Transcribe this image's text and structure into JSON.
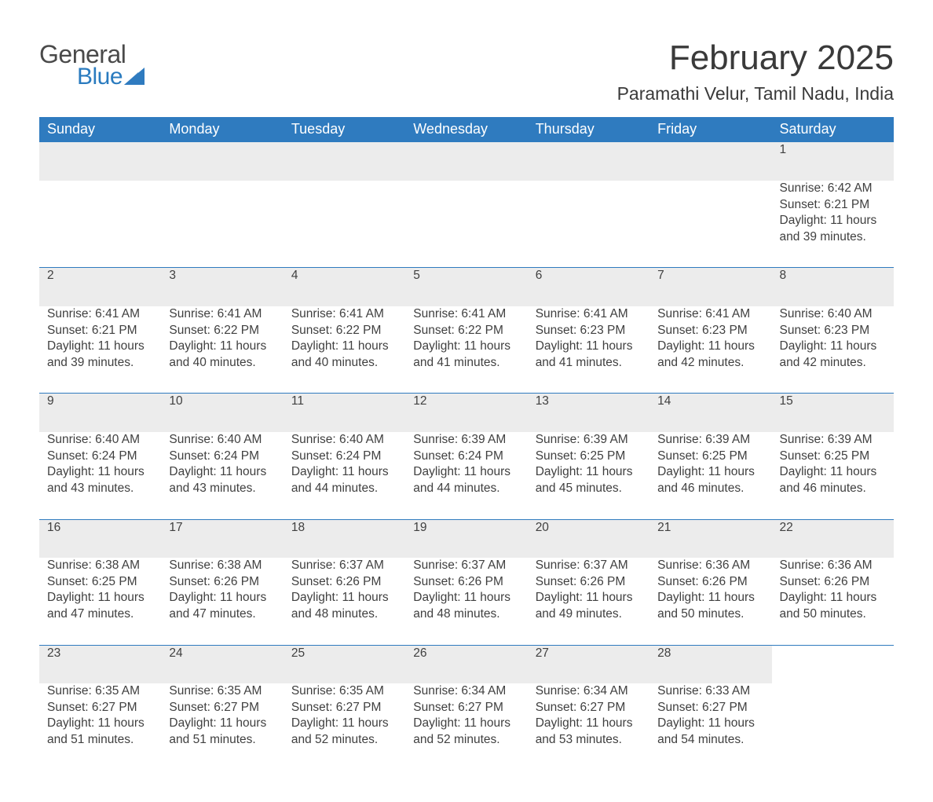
{
  "brand": {
    "word1": "General",
    "word2": "Blue",
    "sail_color": "#2f7bbf"
  },
  "title": "February 2025",
  "location": "Paramathi Velur, Tamil Nadu, India",
  "colors": {
    "header_bg": "#2f7bbf",
    "header_text": "#ffffff",
    "daynum_bg": "#ececec",
    "daynum_border": "#2f7bbf",
    "body_text": "#404040",
    "page_bg": "#ffffff"
  },
  "fonts": {
    "title_size_pt": 33,
    "location_size_pt": 17,
    "header_size_pt": 14,
    "cell_size_pt": 12
  },
  "weekdays": [
    "Sunday",
    "Monday",
    "Tuesday",
    "Wednesday",
    "Thursday",
    "Friday",
    "Saturday"
  ],
  "weeks": [
    [
      null,
      null,
      null,
      null,
      null,
      null,
      {
        "n": "1",
        "sr": "Sunrise: 6:42 AM",
        "ss": "Sunset: 6:21 PM",
        "dl": "Daylight: 11 hours and 39 minutes."
      }
    ],
    [
      {
        "n": "2",
        "sr": "Sunrise: 6:41 AM",
        "ss": "Sunset: 6:21 PM",
        "dl": "Daylight: 11 hours and 39 minutes."
      },
      {
        "n": "3",
        "sr": "Sunrise: 6:41 AM",
        "ss": "Sunset: 6:22 PM",
        "dl": "Daylight: 11 hours and 40 minutes."
      },
      {
        "n": "4",
        "sr": "Sunrise: 6:41 AM",
        "ss": "Sunset: 6:22 PM",
        "dl": "Daylight: 11 hours and 40 minutes."
      },
      {
        "n": "5",
        "sr": "Sunrise: 6:41 AM",
        "ss": "Sunset: 6:22 PM",
        "dl": "Daylight: 11 hours and 41 minutes."
      },
      {
        "n": "6",
        "sr": "Sunrise: 6:41 AM",
        "ss": "Sunset: 6:23 PM",
        "dl": "Daylight: 11 hours and 41 minutes."
      },
      {
        "n": "7",
        "sr": "Sunrise: 6:41 AM",
        "ss": "Sunset: 6:23 PM",
        "dl": "Daylight: 11 hours and 42 minutes."
      },
      {
        "n": "8",
        "sr": "Sunrise: 6:40 AM",
        "ss": "Sunset: 6:23 PM",
        "dl": "Daylight: 11 hours and 42 minutes."
      }
    ],
    [
      {
        "n": "9",
        "sr": "Sunrise: 6:40 AM",
        "ss": "Sunset: 6:24 PM",
        "dl": "Daylight: 11 hours and 43 minutes."
      },
      {
        "n": "10",
        "sr": "Sunrise: 6:40 AM",
        "ss": "Sunset: 6:24 PM",
        "dl": "Daylight: 11 hours and 43 minutes."
      },
      {
        "n": "11",
        "sr": "Sunrise: 6:40 AM",
        "ss": "Sunset: 6:24 PM",
        "dl": "Daylight: 11 hours and 44 minutes."
      },
      {
        "n": "12",
        "sr": "Sunrise: 6:39 AM",
        "ss": "Sunset: 6:24 PM",
        "dl": "Daylight: 11 hours and 44 minutes."
      },
      {
        "n": "13",
        "sr": "Sunrise: 6:39 AM",
        "ss": "Sunset: 6:25 PM",
        "dl": "Daylight: 11 hours and 45 minutes."
      },
      {
        "n": "14",
        "sr": "Sunrise: 6:39 AM",
        "ss": "Sunset: 6:25 PM",
        "dl": "Daylight: 11 hours and 46 minutes."
      },
      {
        "n": "15",
        "sr": "Sunrise: 6:39 AM",
        "ss": "Sunset: 6:25 PM",
        "dl": "Daylight: 11 hours and 46 minutes."
      }
    ],
    [
      {
        "n": "16",
        "sr": "Sunrise: 6:38 AM",
        "ss": "Sunset: 6:25 PM",
        "dl": "Daylight: 11 hours and 47 minutes."
      },
      {
        "n": "17",
        "sr": "Sunrise: 6:38 AM",
        "ss": "Sunset: 6:26 PM",
        "dl": "Daylight: 11 hours and 47 minutes."
      },
      {
        "n": "18",
        "sr": "Sunrise: 6:37 AM",
        "ss": "Sunset: 6:26 PM",
        "dl": "Daylight: 11 hours and 48 minutes."
      },
      {
        "n": "19",
        "sr": "Sunrise: 6:37 AM",
        "ss": "Sunset: 6:26 PM",
        "dl": "Daylight: 11 hours and 48 minutes."
      },
      {
        "n": "20",
        "sr": "Sunrise: 6:37 AM",
        "ss": "Sunset: 6:26 PM",
        "dl": "Daylight: 11 hours and 49 minutes."
      },
      {
        "n": "21",
        "sr": "Sunrise: 6:36 AM",
        "ss": "Sunset: 6:26 PM",
        "dl": "Daylight: 11 hours and 50 minutes."
      },
      {
        "n": "22",
        "sr": "Sunrise: 6:36 AM",
        "ss": "Sunset: 6:26 PM",
        "dl": "Daylight: 11 hours and 50 minutes."
      }
    ],
    [
      {
        "n": "23",
        "sr": "Sunrise: 6:35 AM",
        "ss": "Sunset: 6:27 PM",
        "dl": "Daylight: 11 hours and 51 minutes."
      },
      {
        "n": "24",
        "sr": "Sunrise: 6:35 AM",
        "ss": "Sunset: 6:27 PM",
        "dl": "Daylight: 11 hours and 51 minutes."
      },
      {
        "n": "25",
        "sr": "Sunrise: 6:35 AM",
        "ss": "Sunset: 6:27 PM",
        "dl": "Daylight: 11 hours and 52 minutes."
      },
      {
        "n": "26",
        "sr": "Sunrise: 6:34 AM",
        "ss": "Sunset: 6:27 PM",
        "dl": "Daylight: 11 hours and 52 minutes."
      },
      {
        "n": "27",
        "sr": "Sunrise: 6:34 AM",
        "ss": "Sunset: 6:27 PM",
        "dl": "Daylight: 11 hours and 53 minutes."
      },
      {
        "n": "28",
        "sr": "Sunrise: 6:33 AM",
        "ss": "Sunset: 6:27 PM",
        "dl": "Daylight: 11 hours and 54 minutes."
      },
      null
    ]
  ]
}
